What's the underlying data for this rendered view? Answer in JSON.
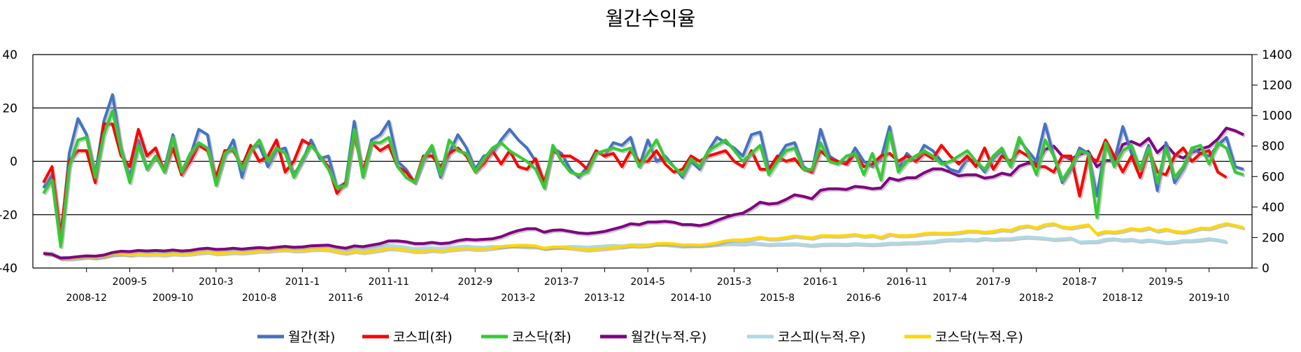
{
  "chart_data": {
    "type": "line",
    "title": "월간수익율",
    "legend_position": "bottom",
    "grid": "horizontal",
    "y_left": {
      "range": [
        -40,
        40
      ],
      "ticks": [
        40,
        20,
        0,
        -20,
        -40
      ]
    },
    "y_right": {
      "range": [
        0,
        1400
      ],
      "ticks": [
        1400,
        1200,
        1000,
        800,
        600,
        400,
        200,
        0
      ]
    },
    "x_ticks_upper": [
      "2009-5",
      "2010-3",
      "2011-1",
      "2011-11",
      "2012-9",
      "2013-7",
      "2014-5",
      "2015-3",
      "2016-1",
      "2016-11",
      "2017-9",
      "2018-7",
      "2019-5"
    ],
    "x_ticks_lower": [
      "2008-12",
      "2009-10",
      "2010-8",
      "2011-6",
      "2012-4",
      "2013-2",
      "2013-12",
      "2014-10",
      "2015-8",
      "2016-6",
      "2017-4",
      "2018-2",
      "2018-12",
      "2019-10"
    ],
    "x_start": "2008-07",
    "series": [
      {
        "name": "월간(좌)",
        "axis": "left",
        "color": "#4472c4",
        "values": [
          -10,
          -5,
          -30,
          3,
          16,
          10,
          -5,
          15,
          25,
          5,
          -6,
          8,
          -3,
          2,
          -3,
          10,
          -5,
          2,
          12,
          10,
          -8,
          2,
          8,
          -6,
          5,
          6,
          -2,
          4,
          5,
          -5,
          0,
          8,
          1,
          2,
          -10,
          -8,
          15,
          -5,
          8,
          10,
          15,
          0,
          -3,
          -8,
          0,
          5,
          -6,
          3,
          10,
          5,
          -3,
          2,
          3,
          8,
          12,
          8,
          5,
          0,
          -10,
          5,
          3,
          -3,
          -6,
          -2,
          4,
          2,
          7,
          6,
          9,
          -2,
          8,
          0,
          2,
          -2,
          -6,
          0,
          -3,
          4,
          9,
          7,
          5,
          2,
          10,
          11,
          -3,
          1,
          6,
          7,
          -2,
          -4,
          12,
          2,
          0,
          -1,
          5,
          0,
          -2,
          1,
          13,
          -3,
          3,
          0,
          6,
          4,
          0,
          -3,
          -4,
          1,
          0,
          -4,
          1,
          4,
          -2,
          8,
          4,
          0,
          14,
          2,
          -8,
          -3,
          5,
          3,
          -13,
          6,
          0,
          13,
          3,
          -3,
          6,
          -11,
          7,
          -8,
          -3,
          5,
          3,
          2,
          6,
          9,
          -2,
          -3
        ]
      },
      {
        "name": "코스피(좌)",
        "axis": "left",
        "color": "#ff0000",
        "values": [
          -8,
          -2,
          -28,
          0,
          4,
          4,
          -8,
          14,
          14,
          2,
          -2,
          12,
          2,
          5,
          -4,
          5,
          -5,
          0,
          6,
          4,
          -6,
          4,
          4,
          -2,
          6,
          0,
          2,
          8,
          -4,
          0,
          8,
          6,
          2,
          -2,
          -12,
          -8,
          10,
          -4,
          7,
          4,
          6,
          -2,
          -4,
          -8,
          2,
          2,
          -2,
          3,
          5,
          2,
          -4,
          -1,
          4,
          -1,
          4,
          -2,
          -3,
          1,
          -8,
          4,
          2,
          2,
          0,
          -3,
          4,
          2,
          3,
          -2,
          4,
          0,
          0,
          4,
          -1,
          -4,
          -3,
          2,
          0,
          2,
          3,
          4,
          0,
          -2,
          4,
          -3,
          -3,
          2,
          0,
          1,
          -3,
          -4,
          4,
          1,
          0,
          -1,
          3,
          -2,
          -1,
          2,
          3,
          0,
          2,
          0,
          3,
          1,
          6,
          2,
          -1,
          2,
          -2,
          5,
          -3,
          2,
          0,
          4,
          2,
          -2,
          -2,
          -4,
          2,
          2,
          -13,
          2,
          0,
          8,
          2,
          -4,
          2,
          -6,
          4,
          -4,
          -5,
          2,
          5,
          0,
          3,
          4,
          -4,
          -6
        ]
      },
      {
        "name": "코스닥(좌)",
        "axis": "left",
        "color": "#33cc33",
        "values": [
          -12,
          -7,
          -32,
          -2,
          8,
          9,
          -6,
          10,
          19,
          4,
          -8,
          6,
          -3,
          2,
          -4,
          9,
          -4,
          3,
          7,
          5,
          -9,
          3,
          5,
          -3,
          4,
          8,
          0,
          5,
          3,
          -6,
          1,
          6,
          2,
          -3,
          -10,
          -9,
          12,
          -6,
          7,
          7,
          9,
          -2,
          -6,
          -8,
          1,
          6,
          -5,
          8,
          4,
          3,
          -4,
          1,
          5,
          7,
          4,
          2,
          0,
          -3,
          -10,
          6,
          0,
          -4,
          -5,
          -4,
          3,
          4,
          5,
          4,
          5,
          -2,
          3,
          8,
          1,
          -2,
          -5,
          1,
          -2,
          4,
          6,
          8,
          4,
          0,
          3,
          6,
          -5,
          0,
          4,
          5,
          -3,
          -3,
          7,
          0,
          -1,
          2,
          3,
          -5,
          3,
          -7,
          11,
          -4,
          0,
          2,
          4,
          2,
          -1,
          0,
          2,
          4,
          0,
          -3,
          2,
          5,
          -2,
          9,
          3,
          -5,
          8,
          2,
          -7,
          -2,
          4,
          3,
          -21,
          7,
          -2,
          4,
          6,
          -3,
          5,
          -8,
          5,
          -6,
          -2,
          5,
          6,
          -1,
          7,
          5,
          -4,
          -5
        ]
      },
      {
        "name": "월간(누적.우)",
        "axis": "right",
        "color": "#800080",
        "values": [
          95,
          90,
          65,
          68,
          75,
          80,
          78,
          85,
          102,
          110,
          108,
          115,
          112,
          115,
          112,
          118,
          112,
          115,
          125,
          130,
          122,
          124,
          130,
          124,
          130,
          134,
          130,
          136,
          142,
          136,
          138,
          146,
          148,
          150,
          138,
          130,
          145,
          140,
          150,
          160,
          178,
          178,
          172,
          160,
          160,
          168,
          160,
          165,
          180,
          188,
          185,
          188,
          192,
          205,
          228,
          246,
          258,
          258,
          235,
          248,
          250,
          240,
          230,
          226,
          232,
          240,
          255,
          270,
          290,
          285,
          302,
          302,
          306,
          300,
          285,
          285,
          278,
          290,
          312,
          333,
          350,
          360,
          392,
          432,
          420,
          425,
          450,
          480,
          470,
          455,
          510,
          520,
          520,
          515,
          535,
          530,
          520,
          525,
          590,
          575,
          592,
          592,
          625,
          650,
          650,
          630,
          605,
          612,
          612,
          590,
          598,
          622,
          610,
          668,
          688,
          685,
          778,
          800,
          735,
          715,
          745,
          765,
          665,
          705,
          705,
          810,
          830,
          805,
          851,
          757,
          810,
          745,
          722,
          759,
          781,
          798,
          846,
          918,
          901,
          874
        ]
      },
      {
        "name": "코스피(누적.우)",
        "axis": "right",
        "color": "#add8e6",
        "values": [
          100,
          98,
          70,
          70,
          73,
          76,
          70,
          80,
          91,
          93,
          91,
          102,
          104,
          109,
          105,
          110,
          104,
          104,
          111,
          115,
          108,
          112,
          116,
          114,
          121,
          121,
          123,
          133,
          128,
          128,
          138,
          146,
          149,
          146,
          128,
          118,
          130,
          125,
          134,
          139,
          147,
          144,
          138,
          127,
          130,
          133,
          130,
          134,
          141,
          144,
          138,
          137,
          142,
          141,
          147,
          144,
          140,
          141,
          130,
          135,
          138,
          141,
          141,
          137,
          142,
          145,
          149,
          146,
          152,
          152,
          152,
          158,
          156,
          150,
          145,
          148,
          148,
          151,
          156,
          162,
          162,
          159,
          165,
          160,
          155,
          158,
          158,
          160,
          155,
          149,
          155,
          157,
          157,
          155,
          160,
          157,
          155,
          158,
          163,
          163,
          166,
          166,
          171,
          173,
          183,
          187,
          185,
          189,
          185,
          194,
          188,
          192,
          192,
          200,
          204,
          200,
          196,
          188,
          192,
          196,
          171,
          174,
          174,
          188,
          192,
          184,
          188,
          177,
          184,
          177,
          168,
          171,
          180,
          180,
          185,
          193,
          185,
          174
        ]
      },
      {
        "name": "코스닥(누적.우)",
        "axis": "right",
        "color": "#ffd700",
        "values": [
          98,
          91,
          62,
          61,
          66,
          72,
          68,
          75,
          89,
          93,
          86,
          91,
          88,
          90,
          86,
          94,
          90,
          93,
          100,
          105,
          95,
          98,
          103,
          100,
          104,
          112,
          112,
          118,
          121,
          114,
          115,
          122,
          124,
          120,
          108,
          98,
          110,
          103,
          110,
          118,
          129,
          126,
          118,
          109,
          110,
          117,
          111,
          120,
          125,
          129,
          124,
          125,
          131,
          140,
          146,
          149,
          149,
          145,
          130,
          138,
          138,
          132,
          125,
          120,
          124,
          129,
          135,
          140,
          147,
          144,
          148,
          160,
          162,
          159,
          151,
          153,
          150,
          156,
          165,
          178,
          185,
          185,
          191,
          202,
          192,
          192,
          200,
          210,
          204,
          198,
          212,
          212,
          210,
          214,
          220,
          209,
          215,
          200,
          222,
          213,
          213,
          217,
          226,
          230,
          228,
          228,
          233,
          242,
          242,
          235,
          240,
          252,
          247,
          269,
          277,
          263,
          284,
          290,
          270,
          264,
          275,
          283,
          224,
          240,
          235,
          244,
          259,
          251,
          264,
          243,
          255,
          240,
          235,
          247,
          262,
          259,
          277,
          291,
          279,
          265
        ]
      }
    ]
  }
}
